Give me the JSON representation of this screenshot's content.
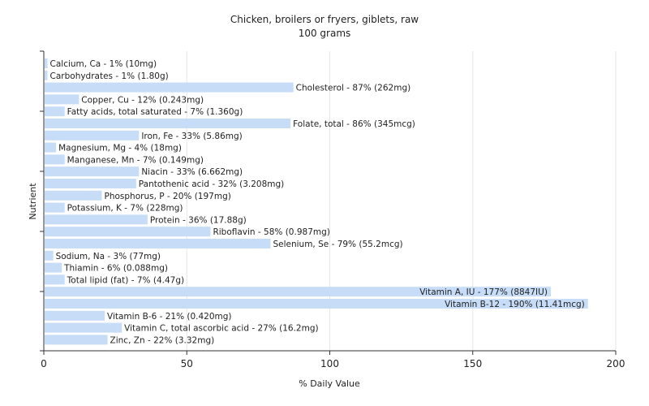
{
  "chart_data": {
    "type": "bar",
    "orientation": "horizontal",
    "title": "Chicken, broilers or fryers, giblets, raw",
    "subtitle": "100 grams",
    "xlabel": "% Daily Value",
    "ylabel": "Nutrient",
    "xlim": [
      0,
      200
    ],
    "xticks": [
      0,
      50,
      100,
      150,
      200
    ],
    "grid": true,
    "bar_color": "#c6dcf7",
    "bars": [
      {
        "label": "Calcium, Ca - 1% (10mg)",
        "value": 1
      },
      {
        "label": "Carbohydrates - 1% (1.80g)",
        "value": 1
      },
      {
        "label": "Cholesterol - 87% (262mg)",
        "value": 87
      },
      {
        "label": "Copper, Cu - 12% (0.243mg)",
        "value": 12
      },
      {
        "label": "Fatty acids, total saturated - 7% (1.360g)",
        "value": 7
      },
      {
        "label": "Folate, total - 86% (345mcg)",
        "value": 86
      },
      {
        "label": "Iron, Fe - 33% (5.86mg)",
        "value": 33
      },
      {
        "label": "Magnesium, Mg - 4% (18mg)",
        "value": 4
      },
      {
        "label": "Manganese, Mn - 7% (0.149mg)",
        "value": 7
      },
      {
        "label": "Niacin - 33% (6.662mg)",
        "value": 33
      },
      {
        "label": "Pantothenic acid - 32% (3.208mg)",
        "value": 32
      },
      {
        "label": "Phosphorus, P - 20% (197mg)",
        "value": 20
      },
      {
        "label": "Potassium, K - 7% (228mg)",
        "value": 7
      },
      {
        "label": "Protein - 36% (17.88g)",
        "value": 36
      },
      {
        "label": "Riboflavin - 58% (0.987mg)",
        "value": 58
      },
      {
        "label": "Selenium, Se - 79% (55.2mcg)",
        "value": 79
      },
      {
        "label": "Sodium, Na - 3% (77mg)",
        "value": 3
      },
      {
        "label": "Thiamin - 6% (0.088mg)",
        "value": 6
      },
      {
        "label": "Total lipid (fat) - 7% (4.47g)",
        "value": 7
      },
      {
        "label": "Vitamin A, IU - 177% (8847IU)",
        "value": 177
      },
      {
        "label": "Vitamin B-12 - 190% (11.41mcg)",
        "value": 190
      },
      {
        "label": "Vitamin B-6 - 21% (0.420mg)",
        "value": 21
      },
      {
        "label": "Vitamin C, total ascorbic acid - 27% (16.2mg)",
        "value": 27
      },
      {
        "label": "Zinc, Zn - 22% (3.32mg)",
        "value": 22
      }
    ]
  }
}
